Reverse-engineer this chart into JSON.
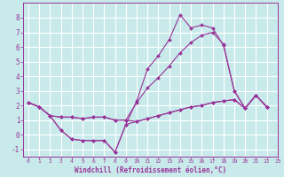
{
  "title": "",
  "xlabel": "Windchill (Refroidissement éolien,°C)",
  "ylabel": "",
  "bg_color": "#c8eaea",
  "grid_color": "#ffffff",
  "line_color": "#993399",
  "xlim": [
    -0.5,
    23
  ],
  "ylim": [
    -1.5,
    9.0
  ],
  "xticks": [
    0,
    1,
    2,
    3,
    4,
    5,
    6,
    7,
    8,
    9,
    10,
    11,
    12,
    13,
    14,
    15,
    16,
    17,
    18,
    19,
    20,
    21,
    22,
    23
  ],
  "yticks": [
    -1,
    0,
    1,
    2,
    3,
    4,
    5,
    6,
    7,
    8
  ],
  "lines": [
    {
      "x": [
        0,
        1,
        2,
        3,
        4,
        5,
        6,
        7,
        8,
        9,
        10,
        11,
        12,
        13,
        14,
        15,
        16,
        17,
        18,
        19,
        20,
        21,
        22
      ],
      "y": [
        2.2,
        1.9,
        1.3,
        0.3,
        -0.3,
        -0.4,
        -0.4,
        -0.4,
        -1.2,
        0.7,
        2.3,
        4.5,
        5.4,
        6.5,
        8.2,
        7.3,
        7.5,
        7.3,
        6.1,
        3.0,
        1.8,
        2.7,
        1.9
      ]
    },
    {
      "x": [
        0,
        1,
        2,
        3,
        4,
        5,
        6,
        7,
        8,
        9,
        10,
        11,
        12,
        13,
        14,
        15,
        16,
        17,
        18,
        19,
        20,
        21,
        22
      ],
      "y": [
        2.2,
        1.9,
        1.3,
        1.2,
        1.2,
        1.1,
        1.2,
        1.2,
        1.0,
        1.0,
        2.2,
        3.2,
        3.9,
        4.7,
        5.6,
        6.3,
        6.8,
        7.0,
        6.2,
        3.0,
        1.8,
        2.7,
        1.9
      ]
    },
    {
      "x": [
        0,
        1,
        2,
        3,
        4,
        5,
        6,
        7,
        8,
        9,
        10,
        11,
        12,
        13,
        14,
        15,
        16,
        17,
        18,
        19,
        20,
        21,
        22
      ],
      "y": [
        2.2,
        1.9,
        1.3,
        1.2,
        1.2,
        1.1,
        1.2,
        1.2,
        1.0,
        1.0,
        0.9,
        1.1,
        1.3,
        1.5,
        1.7,
        1.9,
        2.0,
        2.2,
        2.3,
        2.4,
        1.8,
        2.7,
        1.9
      ]
    },
    {
      "x": [
        0,
        1,
        2,
        3,
        4,
        5,
        6,
        7,
        8,
        9,
        10,
        11,
        12,
        13,
        14,
        15,
        16,
        17,
        18,
        19,
        20,
        21,
        22
      ],
      "y": [
        2.2,
        1.9,
        1.3,
        0.3,
        -0.3,
        -0.4,
        -0.4,
        -0.4,
        -1.2,
        0.7,
        0.9,
        1.1,
        1.3,
        1.5,
        1.7,
        1.9,
        2.0,
        2.2,
        2.3,
        2.4,
        1.8,
        2.7,
        1.9
      ]
    }
  ]
}
